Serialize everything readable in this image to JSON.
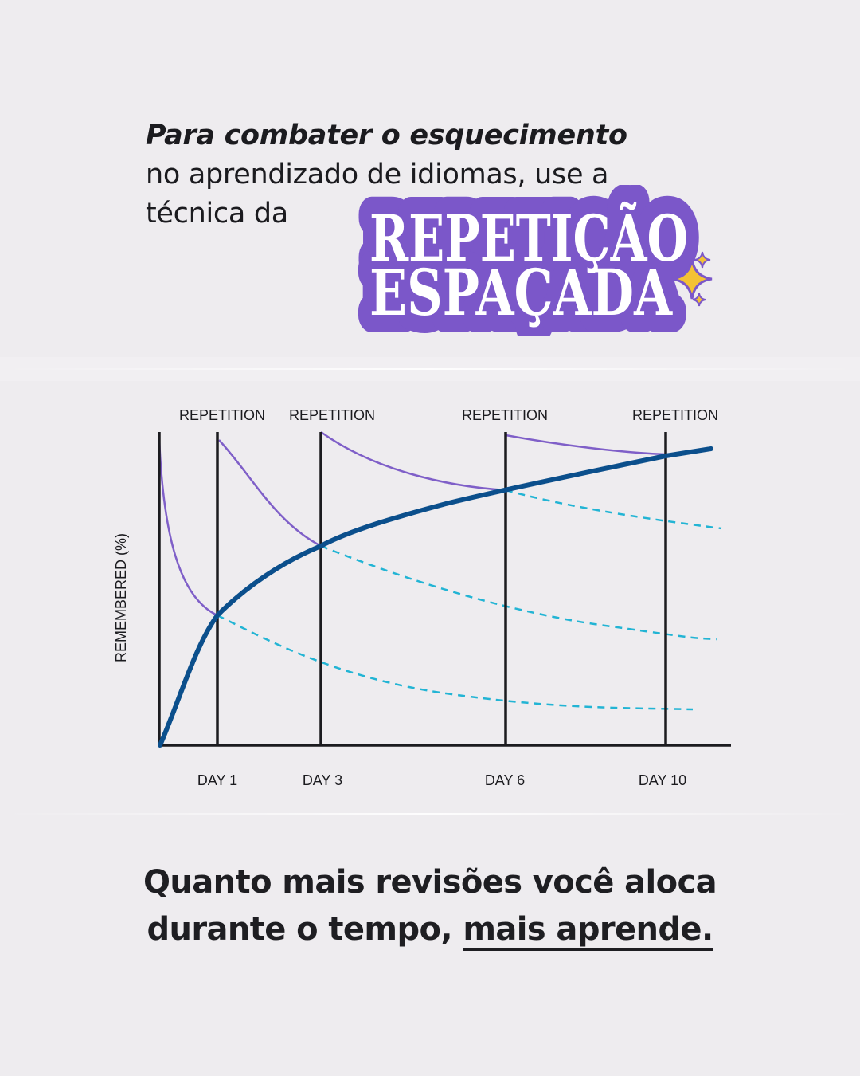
{
  "headline": {
    "lead": "Para combater o esquecimento",
    "rest": "no aprendizado de idiomas, use a técnica da"
  },
  "sticker": {
    "line1": "REPETIÇÃO",
    "line2": "ESPAÇADA",
    "icon": "sparkles-icon",
    "fill_color": "#7b57c9",
    "text_color": "#ffffff"
  },
  "caption": {
    "line1": "Quanto mais revisões você aloca",
    "line2_prefix": "durante o tempo, ",
    "line2_highlight": "mais aprende."
  },
  "chart_data": {
    "type": "line",
    "title": "",
    "ylabel": "REMEMBERED (%)",
    "xlabel": "",
    "x_ticks": [
      "DAY 1",
      "DAY 3",
      "DAY 6",
      "DAY 10"
    ],
    "repetition_label": "REPETITION",
    "repetition_days": [
      1,
      3,
      6,
      10
    ],
    "colors": {
      "retention": "#0b4f8c",
      "forgetting": "#7f5fc8",
      "projection": "#22b4d4",
      "axis": "#1b1b1f"
    }
  }
}
